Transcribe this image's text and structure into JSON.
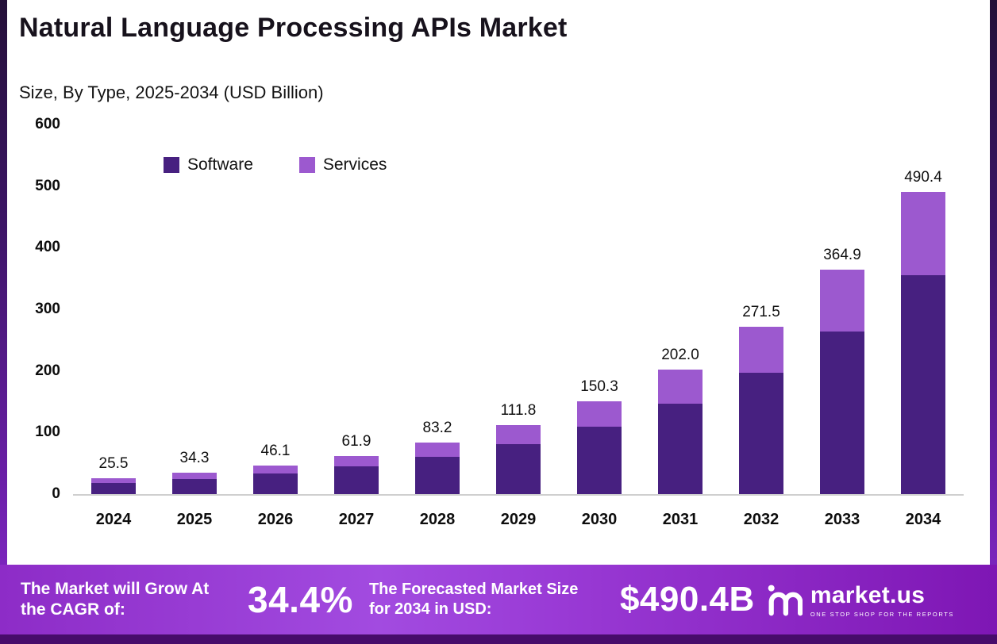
{
  "header": {
    "title": "Natural Language Processing APIs Market",
    "subtitle": "Size, By Type, 2025-2034 (USD Billion)"
  },
  "chart_data": {
    "type": "bar",
    "stacked": true,
    "title": "Natural Language Processing APIs Market",
    "subtitle": "Size, By Type, 2025-2034 (USD Billion)",
    "categories": [
      "2024",
      "2025",
      "2026",
      "2027",
      "2028",
      "2029",
      "2030",
      "2031",
      "2032",
      "2033",
      "2034"
    ],
    "series": [
      {
        "name": "Software",
        "color": "#472080",
        "values": [
          18.4,
          24.8,
          33.4,
          44.9,
          60.4,
          81.2,
          109.0,
          146.4,
          197.0,
          264.6,
          355.5
        ]
      },
      {
        "name": "Services",
        "color": "#9c59cf",
        "values": [
          7.1,
          9.5,
          12.7,
          17.0,
          22.8,
          30.6,
          41.3,
          55.6,
          74.5,
          100.3,
          134.9
        ]
      }
    ],
    "totals": [
      "25.5",
      "34.3",
      "46.1",
      "61.9",
      "83.2",
      "111.8",
      "150.3",
      "202.0",
      "271.5",
      "364.9",
      "490.4"
    ],
    "ylim": [
      0,
      600
    ],
    "yticks": [
      0,
      100,
      200,
      300,
      400,
      500,
      600
    ],
    "grid": false,
    "legend_position": "top-left"
  },
  "footer": {
    "cagr_label": "The Market will Grow At the CAGR of:",
    "cagr_value": "34.4%",
    "forecast_label": "The Forecasted Market Size for 2034 in USD:",
    "forecast_value": "$490.4B",
    "brand": "market.us",
    "brand_tagline": "ONE STOP SHOP FOR THE REPORTS"
  },
  "colors": {
    "software": "#472080",
    "services": "#9c59cf",
    "banner_start": "#8d2cc7",
    "banner_end": "#7e16b4",
    "strip": "#470c6b"
  }
}
